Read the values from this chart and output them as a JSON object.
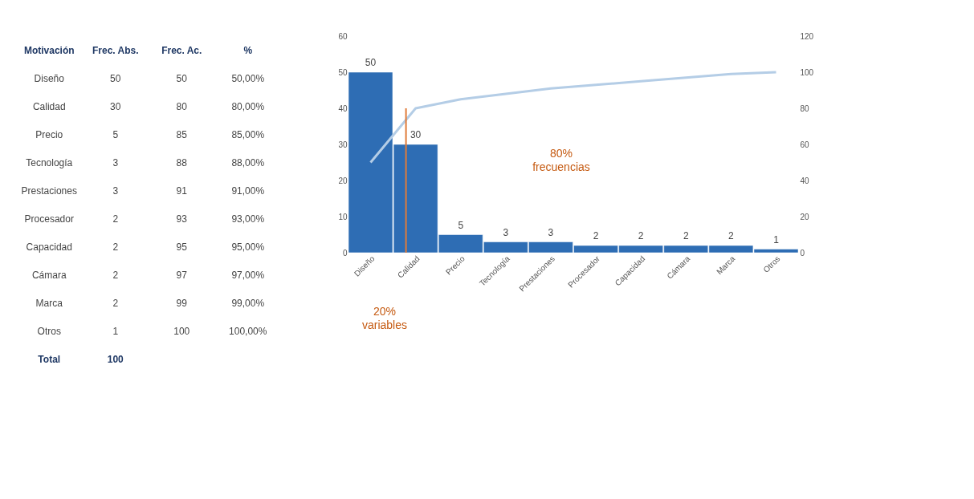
{
  "chart_data": [
    {
      "type": "other",
      "legend_title": "Motivación",
      "categories": [
        "Diseño",
        "Calidad",
        "Precio",
        "Tecnología",
        "Prestaciones",
        "Procesador",
        "Capacidad",
        "Cámara",
        "Marca",
        "Otros"
      ],
      "series": [
        {
          "name": "Frec. Abs.",
          "values": [
            50,
            30,
            5,
            3,
            3,
            2,
            2,
            2,
            2,
            1
          ]
        },
        {
          "name": "Frec. Ac.",
          "values": [
            50,
            80,
            85,
            88,
            91,
            93,
            95,
            97,
            99,
            100
          ]
        },
        {
          "name": "%",
          "values": [
            50,
            80,
            85,
            88,
            91,
            93,
            95,
            97,
            99,
            100
          ],
          "value_labels": [
            "50,00%",
            "80,00%",
            "85,00%",
            "88,00%",
            "91,00%",
            "93,00%",
            "95,00%",
            "97,00%",
            "99,00%",
            "100,00%"
          ]
        }
      ],
      "data_labels": true,
      "annotations": [
        "Total",
        "100"
      ]
    },
    {
      "type": "bar",
      "categories": [
        "Diseño",
        "Calidad",
        "Precio",
        "Tecnología",
        "Prestaciones",
        "Procesador",
        "Capacidad",
        "Cámara",
        "Marca",
        "Otros"
      ],
      "series": [
        {
          "color": "#2e6db4",
          "values": [
            50,
            30,
            5,
            3,
            3,
            2,
            2,
            2,
            2,
            1
          ],
          "value_labels": [
            "50",
            "30",
            "5",
            "3",
            "3",
            "2",
            "2",
            "2",
            "2",
            "1"
          ]
        },
        {
          "type": "line",
          "axis": "y2",
          "color": "#b4cde6",
          "values": [
            50,
            80,
            85,
            88,
            91,
            93,
            95,
            97,
            99,
            100
          ]
        }
      ],
      "ylim": [
        0,
        60
      ],
      "yticks": [
        0,
        10,
        20,
        30,
        40,
        50,
        60
      ],
      "y2lim": [
        0,
        120
      ],
      "y2ticks": [
        0,
        20,
        40,
        60,
        80,
        100,
        120
      ],
      "ref_lines": [
        {
          "axis": "x",
          "value": "Calidad",
          "color": "#e07b39"
        }
      ],
      "annotations": [
        "80% frecuencias",
        "20% variables"
      ]
    }
  ]
}
